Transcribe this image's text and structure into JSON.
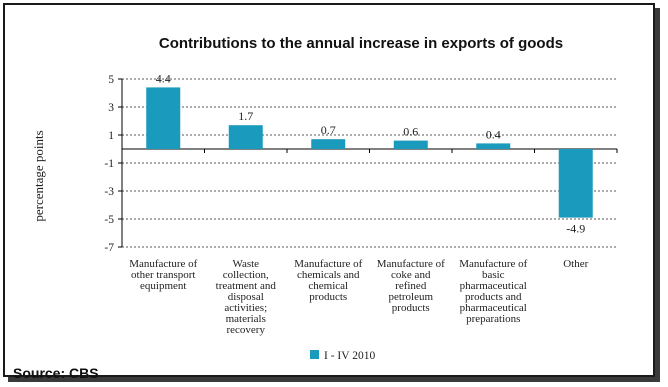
{
  "chart_data": {
    "type": "bar",
    "title": "Contributions to the annual increase in exports of goods",
    "ylabel": "percentage points",
    "xlabel": "",
    "ylim": [
      -7,
      5
    ],
    "yticks": [
      "5",
      "3",
      "1",
      "-1",
      "-3",
      "-5",
      "-7"
    ],
    "grid": true,
    "categories": [
      [
        "Manufacture of",
        "other transport",
        "equipment"
      ],
      [
        "Waste",
        "collection,",
        "treatment and",
        "disposal",
        "activities;",
        "materials",
        "recovery"
      ],
      [
        "Manufacture of",
        "chemicals and",
        "chemical",
        "products"
      ],
      [
        "Manufacture of",
        "coke and",
        "refined",
        "petroleum",
        "products"
      ],
      [
        "Manufacture of",
        "basic",
        "pharmaceutical",
        "products and",
        "pharmaceutical",
        "preparations"
      ],
      [
        "Other"
      ]
    ],
    "series": [
      {
        "name": "I - IV 2010",
        "values": [
          4.4,
          1.7,
          0.7,
          0.6,
          0.4,
          -4.9
        ]
      }
    ],
    "value_labels": [
      "4.4",
      "1.7",
      "0.7",
      "0.6",
      "0.4",
      "-4.9"
    ],
    "legend_position": "bottom",
    "colors": {
      "bar": "#1a9bbd",
      "gridline": "#555555",
      "axis": "#000000"
    }
  },
  "source": "Source: CBS"
}
